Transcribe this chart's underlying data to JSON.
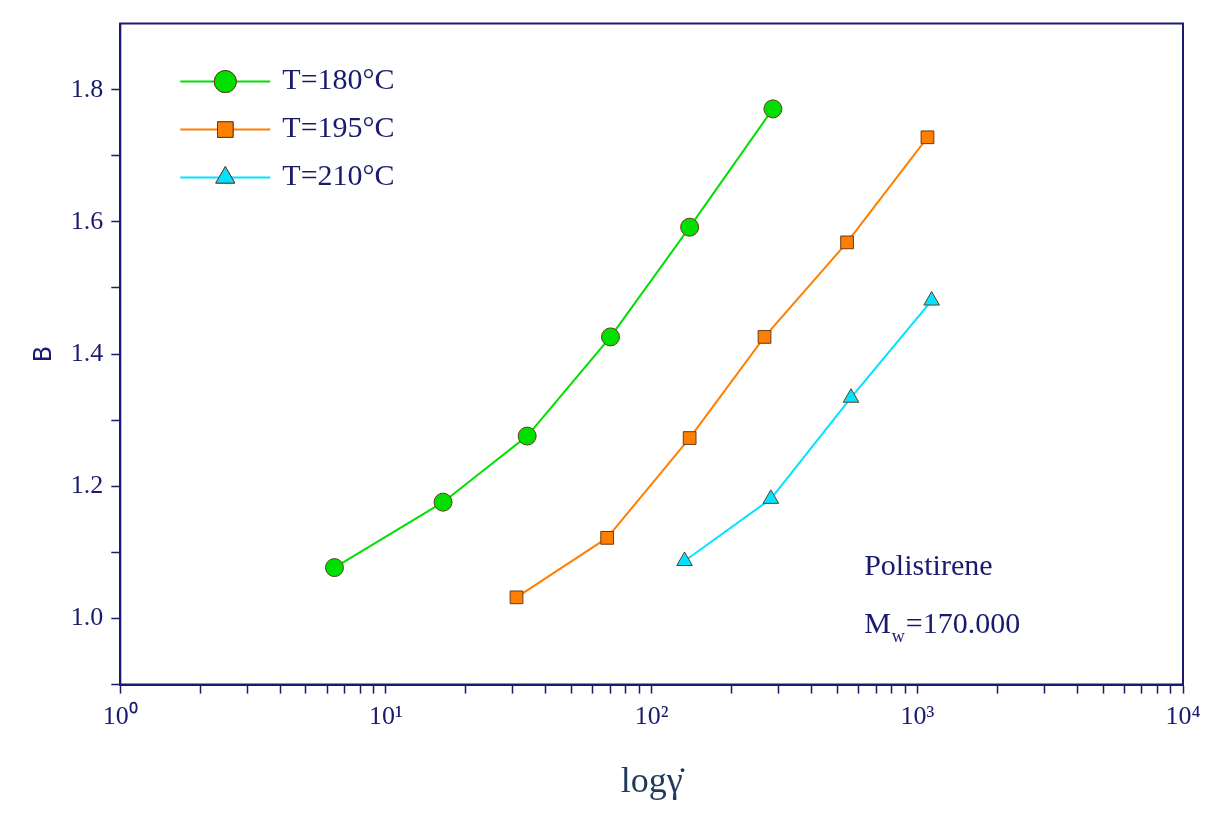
{
  "chart_data": {
    "type": "line",
    "xlabel": "logγ̇",
    "ylabel": "B",
    "log": "x",
    "grid": false,
    "legend": "top left",
    "line_style": "solid",
    "xlim": [
      1,
      10000
    ],
    "xticks": [
      {
        "value": 1,
        "label": "10⁰"
      },
      {
        "value": 2,
        "label": null
      },
      {
        "value": 3,
        "label": null
      },
      {
        "value": 4,
        "label": null
      },
      {
        "value": 5,
        "label": null
      },
      {
        "value": 6,
        "label": null
      },
      {
        "value": 7,
        "label": null
      },
      {
        "value": 8,
        "label": null
      },
      {
        "value": 9,
        "label": null
      },
      {
        "value": 10,
        "label": "10¹"
      },
      {
        "value": 20,
        "label": null
      },
      {
        "value": 30,
        "label": null
      },
      {
        "value": 40,
        "label": null
      },
      {
        "value": 50,
        "label": null
      },
      {
        "value": 60,
        "label": null
      },
      {
        "value": 70,
        "label": null
      },
      {
        "value": 80,
        "label": null
      },
      {
        "value": 90,
        "label": null
      },
      {
        "value": 100,
        "label": "10²"
      },
      {
        "value": 200,
        "label": null
      },
      {
        "value": 300,
        "label": null
      },
      {
        "value": 400,
        "label": null
      },
      {
        "value": 500,
        "label": null
      },
      {
        "value": 600,
        "label": null
      },
      {
        "value": 700,
        "label": null
      },
      {
        "value": 800,
        "label": null
      },
      {
        "value": 900,
        "label": null
      },
      {
        "value": 1000,
        "label": "10³"
      },
      {
        "value": 2000,
        "label": null
      },
      {
        "value": 3000,
        "label": null
      },
      {
        "value": 4000,
        "label": null
      },
      {
        "value": 5000,
        "label": null
      },
      {
        "value": 6000,
        "label": null
      },
      {
        "value": 7000,
        "label": null
      },
      {
        "value": 8000,
        "label": null
      },
      {
        "value": 9000,
        "label": null
      },
      {
        "value": 10000,
        "label": "10⁴"
      }
    ],
    "ylim": [
      0.9,
      1.9
    ],
    "yticks": [
      {
        "value": 0.9,
        "label": null
      },
      {
        "value": 1.0,
        "label": "1.0"
      },
      {
        "value": 1.1,
        "label": null
      },
      {
        "value": 1.2,
        "label": "1.2"
      },
      {
        "value": 1.3,
        "label": null
      },
      {
        "value": 1.4,
        "label": "1.4"
      },
      {
        "value": 1.5,
        "label": null
      },
      {
        "value": 1.6,
        "label": "1.6"
      },
      {
        "value": 1.7,
        "label": null
      },
      {
        "value": 1.8,
        "label": "1.8"
      }
    ],
    "series": [
      {
        "name": "T=180°C",
        "color": "#00e000",
        "marker": "circle",
        "x": [
          6.4,
          16.4,
          34,
          70,
          139,
          286
        ],
        "values": [
          1.077,
          1.176,
          1.276,
          1.426,
          1.592,
          1.771
        ]
      },
      {
        "name": "T=195°C",
        "color": "#ff7f00",
        "marker": "square",
        "x": [
          31,
          68,
          139,
          266,
          544,
          1092
        ],
        "values": [
          1.032,
          1.122,
          1.273,
          1.426,
          1.569,
          1.728
        ]
      },
      {
        "name": "T=210°C",
        "color": "#00e5ff",
        "marker": "triangle",
        "x": [
          133,
          281,
          563,
          1132
        ],
        "values": [
          1.087,
          1.181,
          1.334,
          1.481
        ]
      }
    ],
    "annotations": [
      "Polistirene",
      "M$_{w}$=170.000"
    ]
  }
}
